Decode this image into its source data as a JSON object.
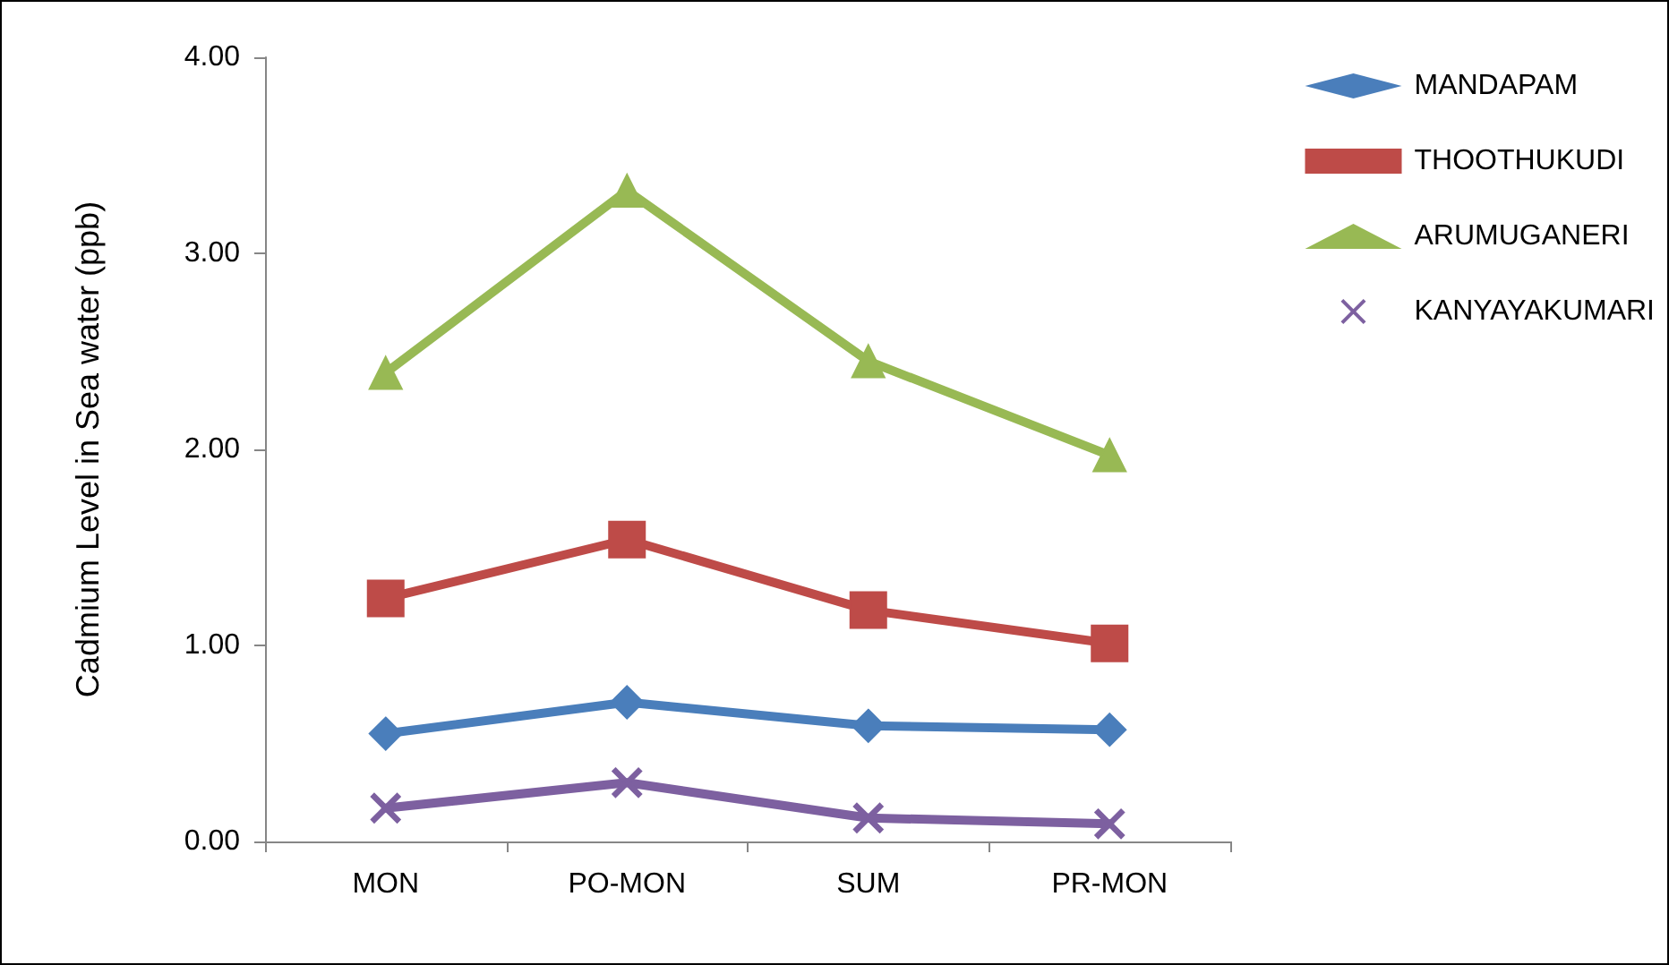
{
  "chart_data": {
    "type": "line",
    "ylabel": "Cadmium Level in Sea water (ppb)",
    "categories": [
      "MON",
      "PO-MON",
      "SUM",
      "PR-MON"
    ],
    "series": [
      {
        "name": "MANDAPAM",
        "color": "#4a7ebb",
        "marker": "diamond",
        "values": [
          0.55,
          0.71,
          0.59,
          0.57
        ]
      },
      {
        "name": "THOOTHUKUDI",
        "color": "#be4b48",
        "marker": "square",
        "values": [
          1.24,
          1.54,
          1.18,
          1.01
        ]
      },
      {
        "name": "ARUMUGANERI",
        "color": "#98b954",
        "marker": "triangle",
        "values": [
          2.39,
          3.32,
          2.45,
          1.97
        ]
      },
      {
        "name": "KANYAYAKUMARI",
        "color": "#7d60a0",
        "marker": "cross",
        "values": [
          0.17,
          0.3,
          0.12,
          0.09
        ]
      }
    ],
    "ylim": [
      0,
      4
    ],
    "yticks": [
      {
        "value": 0,
        "label": "0.00"
      },
      {
        "value": 1,
        "label": "1.00"
      },
      {
        "value": 2,
        "label": "2.00"
      },
      {
        "value": 3,
        "label": "3.00"
      },
      {
        "value": 4,
        "label": "4.00"
      }
    ],
    "grid": false,
    "legend": "top right",
    "line_style": "solid"
  }
}
